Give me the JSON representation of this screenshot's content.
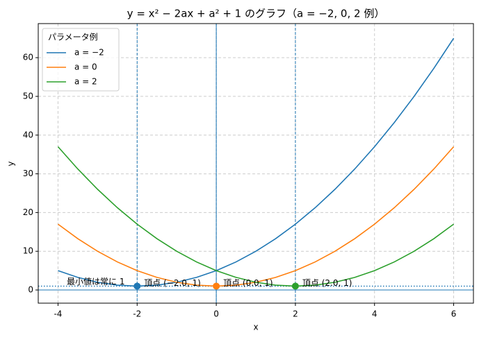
{
  "chart_data": {
    "type": "line",
    "title": "y = x² − 2ax + a² + 1 のグラフ（a = −2, 0, 2 例）",
    "xlabel": "x",
    "ylabel": "y",
    "x": [
      -4,
      -3.5,
      -3,
      -2.5,
      -2,
      -1.5,
      -1,
      -0.5,
      0,
      0.5,
      1,
      1.5,
      2,
      2.5,
      3,
      3.5,
      4,
      4.5,
      5,
      5.5,
      6
    ],
    "series": [
      {
        "name": "a = −2",
        "color": "#1f77b4",
        "values": [
          5,
          3.25,
          2,
          1.25,
          1,
          1.25,
          2,
          3.25,
          5,
          7.25,
          10,
          13.25,
          17,
          21.25,
          26,
          31.25,
          37,
          43.25,
          50,
          57.25,
          65
        ]
      },
      {
        "name": "a = 0",
        "color": "#ff7f0e",
        "values": [
          17,
          13.25,
          10,
          7.25,
          5,
          3.25,
          2,
          1.25,
          1,
          1.25,
          2,
          3.25,
          5,
          7.25,
          10,
          13.25,
          17,
          21.25,
          26,
          31.25,
          37
        ]
      },
      {
        "name": "a = 2",
        "color": "#2ca02c",
        "values": [
          37,
          31.25,
          26,
          21.25,
          17,
          13.25,
          10,
          7.25,
          5,
          3.25,
          2,
          1.25,
          1,
          1.25,
          2,
          3.25,
          5,
          7.25,
          10,
          13.25,
          17
        ]
      }
    ],
    "vertices": [
      {
        "x": -2,
        "y": 1,
        "label": "頂点 (−2.0, 1)",
        "color": "#1f77b4"
      },
      {
        "x": 0,
        "y": 1,
        "label": "頂点 (0.0, 1)",
        "color": "#ff7f0e"
      },
      {
        "x": 2,
        "y": 1,
        "label": "頂点 (2.0, 1)",
        "color": "#2ca02c"
      }
    ],
    "min_line": 1,
    "axis_line_x": 0,
    "axis_line_y": 0,
    "annotation": "最小値は常に 1",
    "legend_title": "パラメータ例",
    "legend": "upper left",
    "xlim": [
      -4.5,
      6.5
    ],
    "ylim": [
      -3.4,
      68.8
    ],
    "xticks": [
      -4,
      -2,
      0,
      2,
      4,
      6
    ],
    "yticks": [
      0,
      10,
      20,
      30,
      40,
      50,
      60
    ],
    "grid": true
  }
}
